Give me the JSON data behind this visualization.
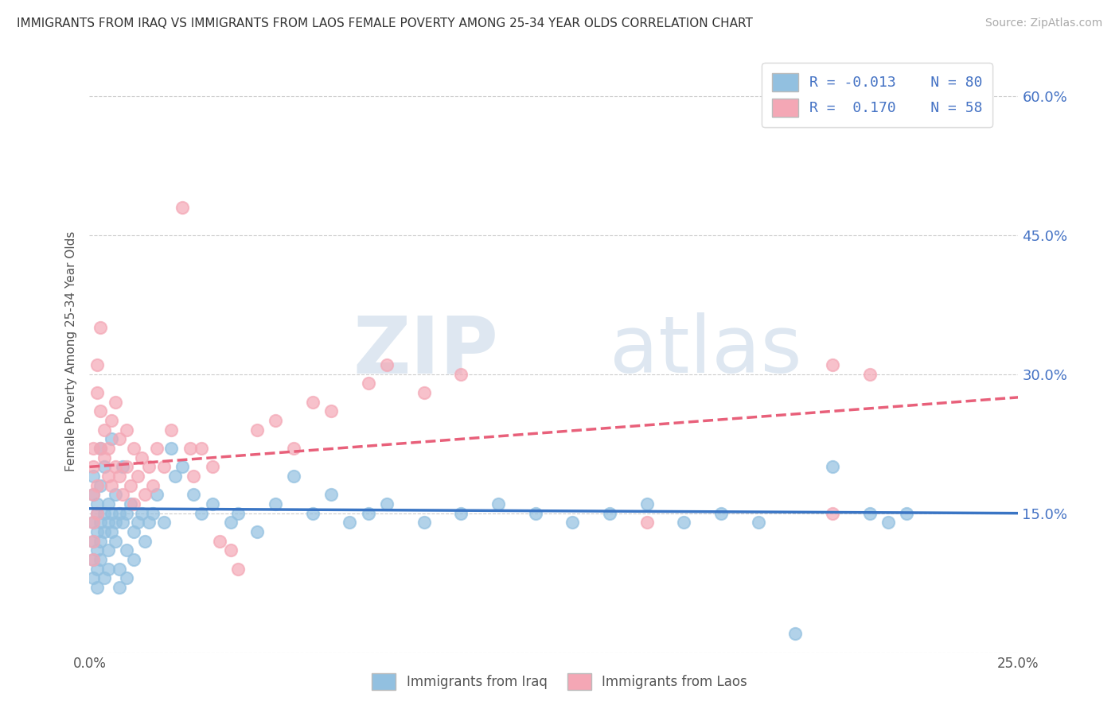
{
  "title": "IMMIGRANTS FROM IRAQ VS IMMIGRANTS FROM LAOS FEMALE POVERTY AMONG 25-34 YEAR OLDS CORRELATION CHART",
  "source": "Source: ZipAtlas.com",
  "ylabel": "Female Poverty Among 25-34 Year Olds",
  "xlim": [
    0.0,
    0.25
  ],
  "ylim": [
    0.0,
    0.65
  ],
  "yticks": [
    0.0,
    0.15,
    0.3,
    0.45,
    0.6
  ],
  "yticklabels_right": [
    "",
    "15.0%",
    "30.0%",
    "45.0%",
    "60.0%"
  ],
  "iraq_color": "#92c0e0",
  "laos_color": "#f4a7b5",
  "iraq_R": -0.013,
  "iraq_N": 80,
  "laos_R": 0.17,
  "laos_N": 58,
  "iraq_line_color": "#3a75c4",
  "laos_line_color": "#e8607a",
  "right_ytick_color": "#4472c4",
  "iraq_scatter": [
    [
      0.001,
      0.14
    ],
    [
      0.001,
      0.12
    ],
    [
      0.001,
      0.1
    ],
    [
      0.001,
      0.08
    ],
    [
      0.001,
      0.17
    ],
    [
      0.001,
      0.19
    ],
    [
      0.002,
      0.15
    ],
    [
      0.002,
      0.13
    ],
    [
      0.002,
      0.11
    ],
    [
      0.002,
      0.09
    ],
    [
      0.002,
      0.07
    ],
    [
      0.002,
      0.16
    ],
    [
      0.003,
      0.14
    ],
    [
      0.003,
      0.12
    ],
    [
      0.003,
      0.1
    ],
    [
      0.003,
      0.18
    ],
    [
      0.003,
      0.22
    ],
    [
      0.004,
      0.15
    ],
    [
      0.004,
      0.13
    ],
    [
      0.004,
      0.2
    ],
    [
      0.004,
      0.08
    ],
    [
      0.005,
      0.16
    ],
    [
      0.005,
      0.14
    ],
    [
      0.005,
      0.11
    ],
    [
      0.005,
      0.09
    ],
    [
      0.006,
      0.15
    ],
    [
      0.006,
      0.13
    ],
    [
      0.006,
      0.23
    ],
    [
      0.007,
      0.14
    ],
    [
      0.007,
      0.12
    ],
    [
      0.007,
      0.17
    ],
    [
      0.008,
      0.15
    ],
    [
      0.008,
      0.09
    ],
    [
      0.008,
      0.07
    ],
    [
      0.009,
      0.14
    ],
    [
      0.009,
      0.2
    ],
    [
      0.01,
      0.15
    ],
    [
      0.01,
      0.11
    ],
    [
      0.01,
      0.08
    ],
    [
      0.011,
      0.16
    ],
    [
      0.012,
      0.13
    ],
    [
      0.012,
      0.1
    ],
    [
      0.013,
      0.14
    ],
    [
      0.014,
      0.15
    ],
    [
      0.015,
      0.12
    ],
    [
      0.016,
      0.14
    ],
    [
      0.017,
      0.15
    ],
    [
      0.018,
      0.17
    ],
    [
      0.02,
      0.14
    ],
    [
      0.022,
      0.22
    ],
    [
      0.023,
      0.19
    ],
    [
      0.025,
      0.2
    ],
    [
      0.028,
      0.17
    ],
    [
      0.03,
      0.15
    ],
    [
      0.033,
      0.16
    ],
    [
      0.038,
      0.14
    ],
    [
      0.04,
      0.15
    ],
    [
      0.045,
      0.13
    ],
    [
      0.05,
      0.16
    ],
    [
      0.055,
      0.19
    ],
    [
      0.06,
      0.15
    ],
    [
      0.065,
      0.17
    ],
    [
      0.07,
      0.14
    ],
    [
      0.075,
      0.15
    ],
    [
      0.08,
      0.16
    ],
    [
      0.09,
      0.14
    ],
    [
      0.1,
      0.15
    ],
    [
      0.11,
      0.16
    ],
    [
      0.12,
      0.15
    ],
    [
      0.13,
      0.14
    ],
    [
      0.14,
      0.15
    ],
    [
      0.15,
      0.16
    ],
    [
      0.16,
      0.14
    ],
    [
      0.17,
      0.15
    ],
    [
      0.18,
      0.14
    ],
    [
      0.19,
      0.02
    ],
    [
      0.2,
      0.2
    ],
    [
      0.21,
      0.15
    ],
    [
      0.215,
      0.14
    ],
    [
      0.22,
      0.15
    ]
  ],
  "laos_scatter": [
    [
      0.001,
      0.17
    ],
    [
      0.001,
      0.14
    ],
    [
      0.001,
      0.12
    ],
    [
      0.001,
      0.1
    ],
    [
      0.001,
      0.2
    ],
    [
      0.001,
      0.22
    ],
    [
      0.002,
      0.28
    ],
    [
      0.002,
      0.18
    ],
    [
      0.002,
      0.15
    ],
    [
      0.002,
      0.31
    ],
    [
      0.003,
      0.26
    ],
    [
      0.003,
      0.22
    ],
    [
      0.003,
      0.35
    ],
    [
      0.004,
      0.21
    ],
    [
      0.004,
      0.24
    ],
    [
      0.005,
      0.19
    ],
    [
      0.005,
      0.22
    ],
    [
      0.006,
      0.18
    ],
    [
      0.006,
      0.25
    ],
    [
      0.007,
      0.2
    ],
    [
      0.007,
      0.27
    ],
    [
      0.008,
      0.19
    ],
    [
      0.008,
      0.23
    ],
    [
      0.009,
      0.17
    ],
    [
      0.01,
      0.2
    ],
    [
      0.01,
      0.24
    ],
    [
      0.011,
      0.18
    ],
    [
      0.012,
      0.16
    ],
    [
      0.012,
      0.22
    ],
    [
      0.013,
      0.19
    ],
    [
      0.014,
      0.21
    ],
    [
      0.015,
      0.17
    ],
    [
      0.016,
      0.2
    ],
    [
      0.017,
      0.18
    ],
    [
      0.018,
      0.22
    ],
    [
      0.02,
      0.2
    ],
    [
      0.022,
      0.24
    ],
    [
      0.025,
      0.48
    ],
    [
      0.027,
      0.22
    ],
    [
      0.028,
      0.19
    ],
    [
      0.03,
      0.22
    ],
    [
      0.033,
      0.2
    ],
    [
      0.035,
      0.12
    ],
    [
      0.038,
      0.11
    ],
    [
      0.04,
      0.09
    ],
    [
      0.045,
      0.24
    ],
    [
      0.05,
      0.25
    ],
    [
      0.055,
      0.22
    ],
    [
      0.06,
      0.27
    ],
    [
      0.065,
      0.26
    ],
    [
      0.075,
      0.29
    ],
    [
      0.08,
      0.31
    ],
    [
      0.09,
      0.28
    ],
    [
      0.1,
      0.3
    ],
    [
      0.15,
      0.14
    ],
    [
      0.2,
      0.15
    ],
    [
      0.2,
      0.31
    ],
    [
      0.21,
      0.3
    ]
  ]
}
